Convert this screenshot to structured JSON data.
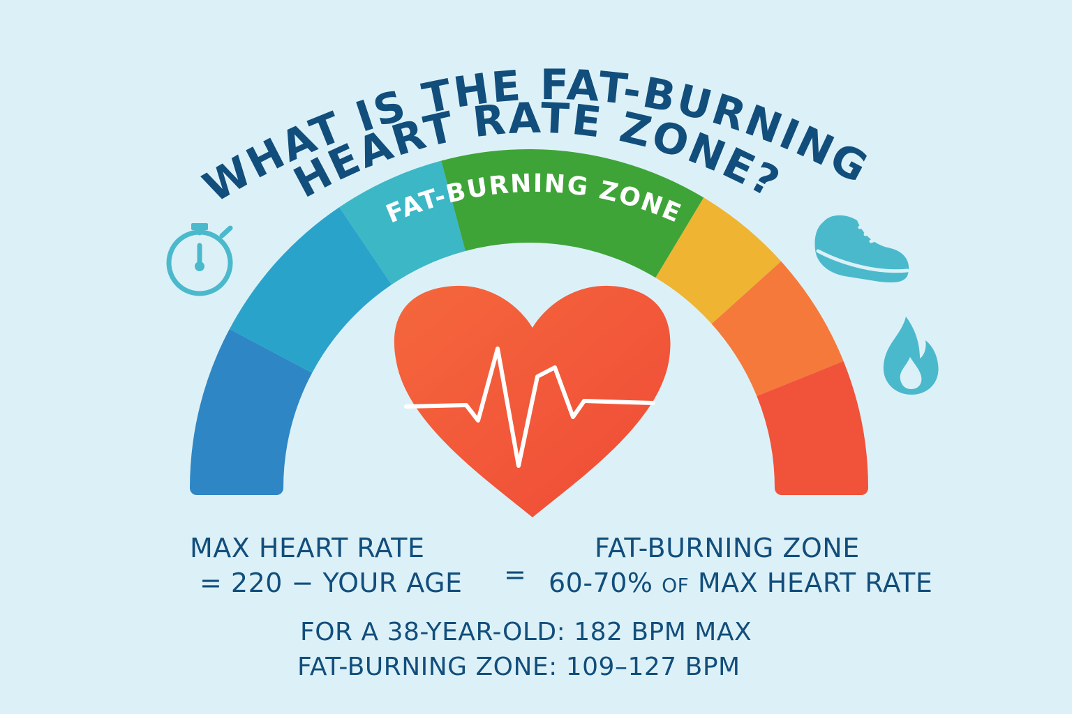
{
  "title": {
    "line1": "WHAT IS THE FAT-BURNING",
    "line2": "HEART RATE ZONE?"
  },
  "gauge": {
    "zone_label": "FAT-BURNING ZONE",
    "segments": [
      {
        "color": "#2f86c4"
      },
      {
        "color": "#2aa3cb"
      },
      {
        "color": "#3cb7c6"
      },
      {
        "color": "#3ea437",
        "label_ref": "zone_label"
      },
      {
        "color": "#efb431"
      },
      {
        "color": "#f5793a"
      },
      {
        "color": "#f1523a"
      }
    ]
  },
  "icons": [
    "stopwatch-icon",
    "sneaker-icon",
    "flame-icon",
    "heart-icon",
    "heartbeat-line-icon"
  ],
  "colors": {
    "background": "#dcf1f7",
    "text": "#124e7c",
    "heart": "#f2553a",
    "icon": "#4bb9cc"
  },
  "formula": {
    "left_line1": "MAX HEART RATE",
    "left_line2": "= 220 − YOUR AGE",
    "equals": "=",
    "right_line1": "FAT-BURNING ZONE",
    "right_line2_number": "60-70%",
    "right_line2_of": "OF",
    "right_line2_rest": "MAX HEART RATE"
  },
  "example": {
    "line1": "FOR A 38-YEAR-OLD: 182 BPM MAX",
    "line2": "FAT-BURNING ZONE: 109–127 BPM"
  }
}
